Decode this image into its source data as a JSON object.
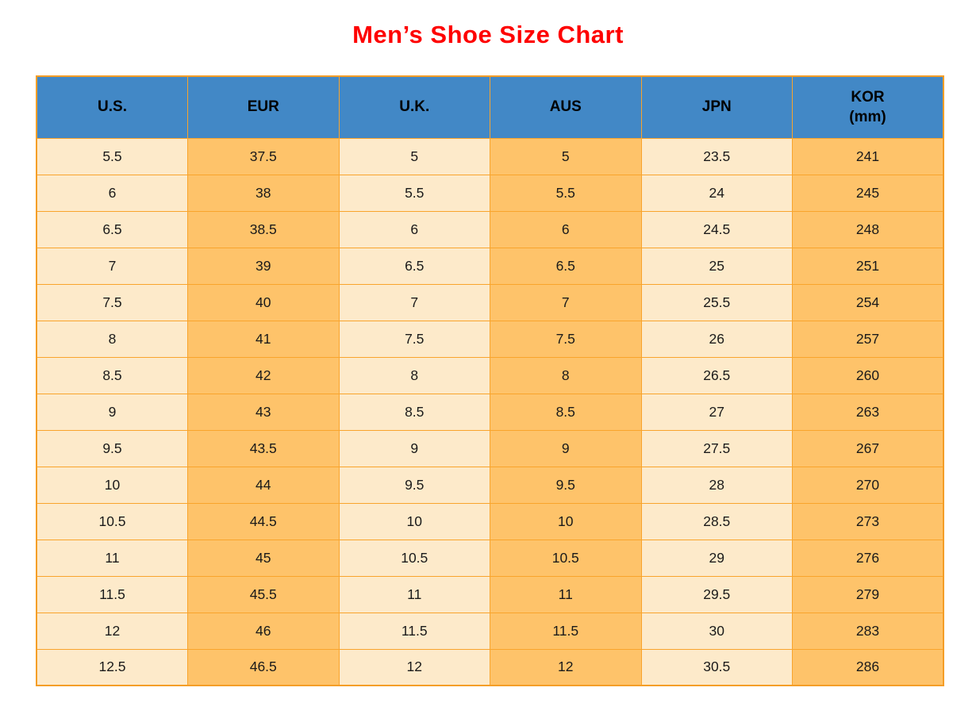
{
  "title": "Men’s Shoe Size Chart",
  "colors": {
    "title": "#fe0000",
    "header_bg": "#4288c6",
    "header_text": "#000000",
    "cell_cream": "#fdeaca",
    "cell_orange": "#fec36a",
    "grid_border": "#f9a42c",
    "outer_border": "#f59e27",
    "page_bg": "#ffffff"
  },
  "chart_data": {
    "type": "table",
    "title": "Men’s Shoe Size Chart",
    "columns": [
      {
        "label": "U.S."
      },
      {
        "label": "EUR"
      },
      {
        "label": "U.K."
      },
      {
        "label": "AUS"
      },
      {
        "label": "JPN"
      },
      {
        "label": "KOR",
        "sublabel": "(mm)"
      }
    ],
    "rows": [
      [
        "5.5",
        "37.5",
        "5",
        "5",
        "23.5",
        "241"
      ],
      [
        "6",
        "38",
        "5.5",
        "5.5",
        "24",
        "245"
      ],
      [
        "6.5",
        "38.5",
        "6",
        "6",
        "24.5",
        "248"
      ],
      [
        "7",
        "39",
        "6.5",
        "6.5",
        "25",
        "251"
      ],
      [
        "7.5",
        "40",
        "7",
        "7",
        "25.5",
        "254"
      ],
      [
        "8",
        "41",
        "7.5",
        "7.5",
        "26",
        "257"
      ],
      [
        "8.5",
        "42",
        "8",
        "8",
        "26.5",
        "260"
      ],
      [
        "9",
        "43",
        "8.5",
        "8.5",
        "27",
        "263"
      ],
      [
        "9.5",
        "43.5",
        "9",
        "9",
        "27.5",
        "267"
      ],
      [
        "10",
        "44",
        "9.5",
        "9.5",
        "28",
        "270"
      ],
      [
        "10.5",
        "44.5",
        "10",
        "10",
        "28.5",
        "273"
      ],
      [
        "11",
        "45",
        "10.5",
        "10.5",
        "29",
        "276"
      ],
      [
        "11.5",
        "45.5",
        "11",
        "11",
        "29.5",
        "279"
      ],
      [
        "12",
        "46",
        "11.5",
        "11.5",
        "30",
        "283"
      ],
      [
        "12.5",
        "46.5",
        "12",
        "12",
        "30.5",
        "286"
      ]
    ]
  }
}
